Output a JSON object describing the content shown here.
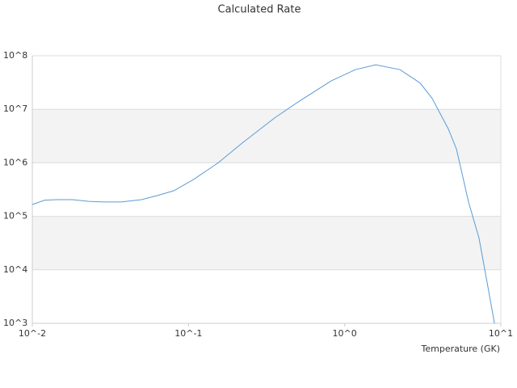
{
  "chart_data": {
    "type": "line",
    "title": "Calculated Rate",
    "x_label": "Temperature (GK)",
    "log_x": true,
    "log_y": true,
    "bands": true,
    "xlim": [
      0.01,
      10
    ],
    "ylim": [
      1000,
      100000000
    ],
    "xticks": [
      {
        "value": 0.01,
        "label": "10^-2"
      },
      {
        "value": 0.1,
        "label": "10^-1"
      },
      {
        "value": 1,
        "label": "10^0"
      },
      {
        "value": 10,
        "label": "10^1"
      }
    ],
    "yticks": [
      {
        "value": 1000,
        "label": "10^3"
      },
      {
        "value": 10000,
        "label": "10^4"
      },
      {
        "value": 100000,
        "label": "10^5"
      },
      {
        "value": 1000000,
        "label": "10^6"
      },
      {
        "value": 10000000,
        "label": "10^7"
      },
      {
        "value": 100000000,
        "label": "10^8"
      }
    ],
    "x": [
      0.01,
      0.012,
      0.0143,
      0.0181,
      0.023,
      0.0292,
      0.037,
      0.0499,
      0.0633,
      0.0804,
      0.108,
      0.155,
      0.221,
      0.356,
      0.509,
      0.82,
      1.17,
      1.58,
      2.26,
      3.04,
      3.63,
      4.61,
      5.2,
      6.21,
      7.25,
      8.36,
      9.1
    ],
    "series": [
      {
        "name": "Rate",
        "color": "#5b9bd5",
        "values": [
          166000,
          200000,
          205000,
          205000,
          190000,
          185000,
          185000,
          205000,
          245000,
          300000,
          490000,
          1000000,
          2350000,
          6900000,
          14000000,
          34000000,
          55000000,
          68000000,
          55000000,
          31000000,
          16000000,
          4300000,
          1800000,
          185000,
          39000,
          4000,
          1000
        ]
      }
    ]
  }
}
